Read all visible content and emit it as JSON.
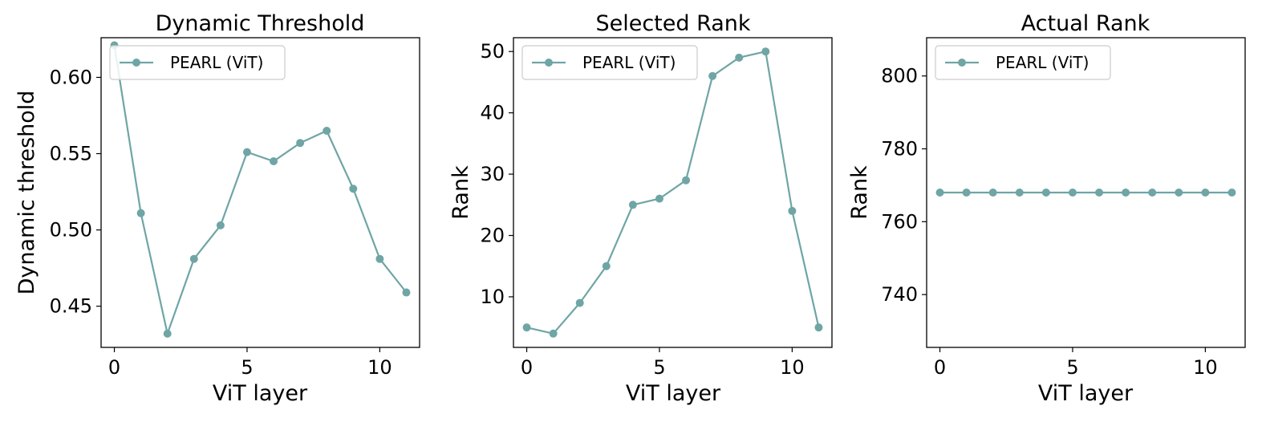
{
  "series_color": "#6fa5a5",
  "chart_data": [
    {
      "type": "line",
      "title": "Dynamic Threshold",
      "xlabel": "ViT layer",
      "ylabel": "Dynamic threshold",
      "legend": "top-left",
      "xlim": [
        -0.5,
        11.5
      ],
      "ylim": [
        0.423,
        0.626
      ],
      "xticks": [
        0,
        5,
        10
      ],
      "xtick_labels": [
        "0",
        "5",
        "10"
      ],
      "yticks": [
        0.45,
        0.5,
        0.55,
        0.6
      ],
      "ytick_labels": [
        "0.45",
        "0.50",
        "0.55",
        "0.60"
      ],
      "x": [
        0,
        1,
        2,
        3,
        4,
        5,
        6,
        7,
        8,
        9,
        10,
        11
      ],
      "series": [
        {
          "name": "PEARL (ViT)",
          "values": [
            0.621,
            0.511,
            0.432,
            0.481,
            0.503,
            0.551,
            0.545,
            0.557,
            0.565,
            0.527,
            0.481,
            0.459
          ]
        }
      ]
    },
    {
      "type": "line",
      "title": "Selected Rank",
      "xlabel": "ViT layer",
      "ylabel": "Rank",
      "legend": "top-left",
      "xlim": [
        -0.5,
        11.5
      ],
      "ylim": [
        1.75,
        52.25
      ],
      "xticks": [
        0,
        5,
        10
      ],
      "xtick_labels": [
        "0",
        "5",
        "10"
      ],
      "yticks": [
        10,
        20,
        30,
        40,
        50
      ],
      "ytick_labels": [
        "10",
        "20",
        "30",
        "40",
        "50"
      ],
      "x": [
        0,
        1,
        2,
        3,
        4,
        5,
        6,
        7,
        8,
        9,
        10,
        11
      ],
      "series": [
        {
          "name": "PEARL (ViT)",
          "values": [
            5,
            4,
            9,
            15,
            25,
            26,
            29,
            46,
            49,
            50,
            24,
            5
          ]
        }
      ]
    },
    {
      "type": "line",
      "title": "Actual Rank",
      "xlabel": "ViT layer",
      "ylabel": "Rank",
      "legend": "top-left",
      "xlim": [
        -0.5,
        11.5
      ],
      "ylim": [
        725.5,
        810.5
      ],
      "xticks": [
        0,
        5,
        10
      ],
      "xtick_labels": [
        "0",
        "5",
        "10"
      ],
      "yticks": [
        740,
        760,
        780,
        800
      ],
      "ytick_labels": [
        "740",
        "760",
        "780",
        "800"
      ],
      "x": [
        0,
        1,
        2,
        3,
        4,
        5,
        6,
        7,
        8,
        9,
        10,
        11
      ],
      "series": [
        {
          "name": "PEARL (ViT)",
          "values": [
            768,
            768,
            768,
            768,
            768,
            768,
            768,
            768,
            768,
            768,
            768,
            768
          ]
        }
      ]
    }
  ]
}
